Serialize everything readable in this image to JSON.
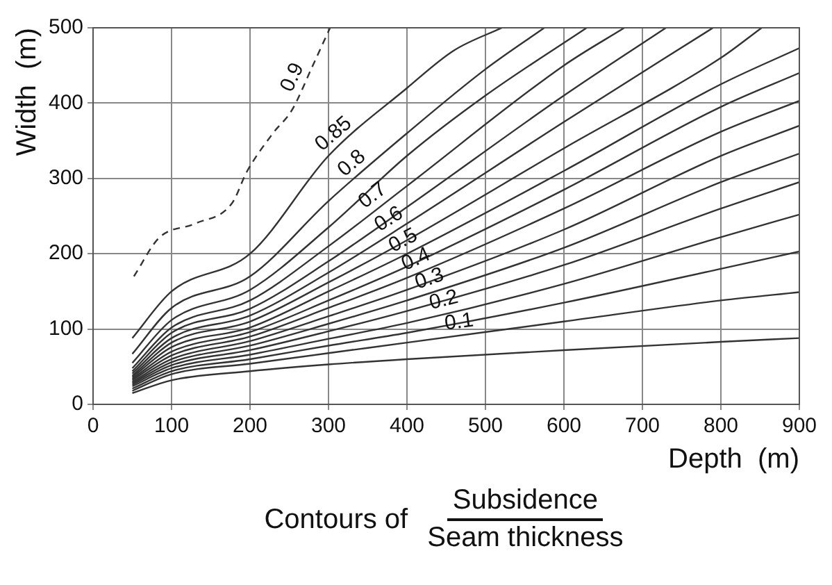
{
  "chart_data": {
    "type": "line",
    "xlabel": "Depth  (m)",
    "ylabel": "Width  (m)",
    "xlim": [
      0,
      900
    ],
    "xticks": [
      0,
      100,
      200,
      300,
      400,
      500,
      600,
      700,
      800,
      900
    ],
    "ylim": [
      0,
      500
    ],
    "yticks": [
      0,
      100,
      200,
      300,
      400,
      500
    ],
    "grid": true,
    "legend": false,
    "annotations": [
      "Contours of",
      "Subsidence",
      "Seam thickness"
    ],
    "series": [
      {
        "color": "#333333",
        "x": [
          50,
          100,
          200,
          300,
          400,
          600,
          800,
          900
        ],
        "values": [
          15,
          32,
          44,
          53,
          60,
          72,
          83,
          88
        ]
      },
      {
        "name": "0.1",
        "color": "#333333",
        "x": [
          50,
          100,
          200,
          300,
          400,
          600,
          800,
          900
        ],
        "values": [
          18,
          40,
          54,
          68,
          82,
          110,
          138,
          149
        ]
      },
      {
        "color": "#333333",
        "x": [
          50,
          100,
          200,
          300,
          400,
          600,
          800,
          900
        ],
        "values": [
          21,
          44,
          60,
          78,
          95,
          135,
          180,
          203
        ]
      },
      {
        "name": "0.2",
        "color": "#333333",
        "x": [
          50,
          100,
          200,
          300,
          400,
          600,
          800,
          900
        ],
        "values": [
          24,
          48,
          66,
          87,
          108,
          160,
          222,
          252
        ]
      },
      {
        "color": "#333333",
        "x": [
          50,
          100,
          200,
          300,
          400,
          600,
          800,
          900
        ],
        "values": [
          26,
          52,
          72,
          97,
          124,
          185,
          260,
          295
        ]
      },
      {
        "name": "0.3",
        "color": "#333333",
        "x": [
          50,
          100,
          200,
          300,
          400,
          600,
          800,
          900
        ],
        "values": [
          28,
          56,
          78,
          107,
          138,
          208,
          295,
          333
        ]
      },
      {
        "color": "#333333",
        "x": [
          50,
          100,
          200,
          300,
          400,
          600,
          800,
          900
        ],
        "values": [
          30,
          60,
          84,
          117,
          152,
          232,
          330,
          370
        ]
      },
      {
        "name": "0.4",
        "color": "#333333",
        "x": [
          50,
          100,
          200,
          300,
          400,
          600,
          800,
          900
        ],
        "values": [
          32,
          65,
          90,
          128,
          168,
          260,
          362,
          403
        ]
      },
      {
        "color": "#333333",
        "x": [
          50,
          100,
          200,
          300,
          400,
          600,
          800,
          900
        ],
        "values": [
          34,
          70,
          96,
          138,
          183,
          285,
          395,
          440
        ]
      },
      {
        "name": "0.5",
        "color": "#333333",
        "x": [
          50,
          100,
          200,
          300,
          400,
          600,
          800,
          900
        ],
        "values": [
          36,
          76,
          102,
          150,
          200,
          310,
          425,
          473
        ]
      },
      {
        "color": "#333333",
        "x": [
          50,
          100,
          200,
          300,
          400,
          600,
          800,
          852
        ],
        "values": [
          38,
          82,
          110,
          162,
          218,
          340,
          460,
          500
        ]
      },
      {
        "name": "0.6",
        "color": "#333333",
        "x": [
          50,
          100,
          200,
          300,
          400,
          600,
          790
        ],
        "values": [
          41,
          88,
          118,
          175,
          240,
          375,
          500
        ]
      },
      {
        "color": "#333333",
        "x": [
          50,
          100,
          200,
          300,
          400,
          600,
          730
        ],
        "values": [
          44,
          95,
          127,
          190,
          262,
          410,
          500
        ]
      },
      {
        "name": "0.7",
        "color": "#333333",
        "x": [
          50,
          100,
          200,
          300,
          400,
          600,
          677
        ],
        "values": [
          48,
          102,
          138,
          210,
          290,
          450,
          500
        ]
      },
      {
        "color": "#333333",
        "x": [
          50,
          100,
          200,
          300,
          400,
          500,
          629
        ],
        "values": [
          55,
          112,
          152,
          235,
          330,
          410,
          500
        ]
      },
      {
        "name": "0.8",
        "color": "#333333",
        "x": [
          50,
          100,
          200,
          300,
          400,
          500,
          575
        ],
        "values": [
          67,
          128,
          170,
          270,
          360,
          445,
          500
        ]
      },
      {
        "name": "0.85",
        "color": "#333333",
        "x": [
          50,
          100,
          200,
          300,
          400,
          460,
          521
        ],
        "values": [
          88,
          150,
          200,
          330,
          420,
          470,
          500
        ]
      },
      {
        "name": "0.9",
        "color": "#333333",
        "line_style": "dashed",
        "x": [
          52,
          84,
          130,
          177,
          196,
          230,
          253,
          280,
          302
        ],
        "values": [
          170,
          221,
          240,
          267,
          309,
          361,
          390,
          450,
          500
        ]
      }
    ]
  }
}
